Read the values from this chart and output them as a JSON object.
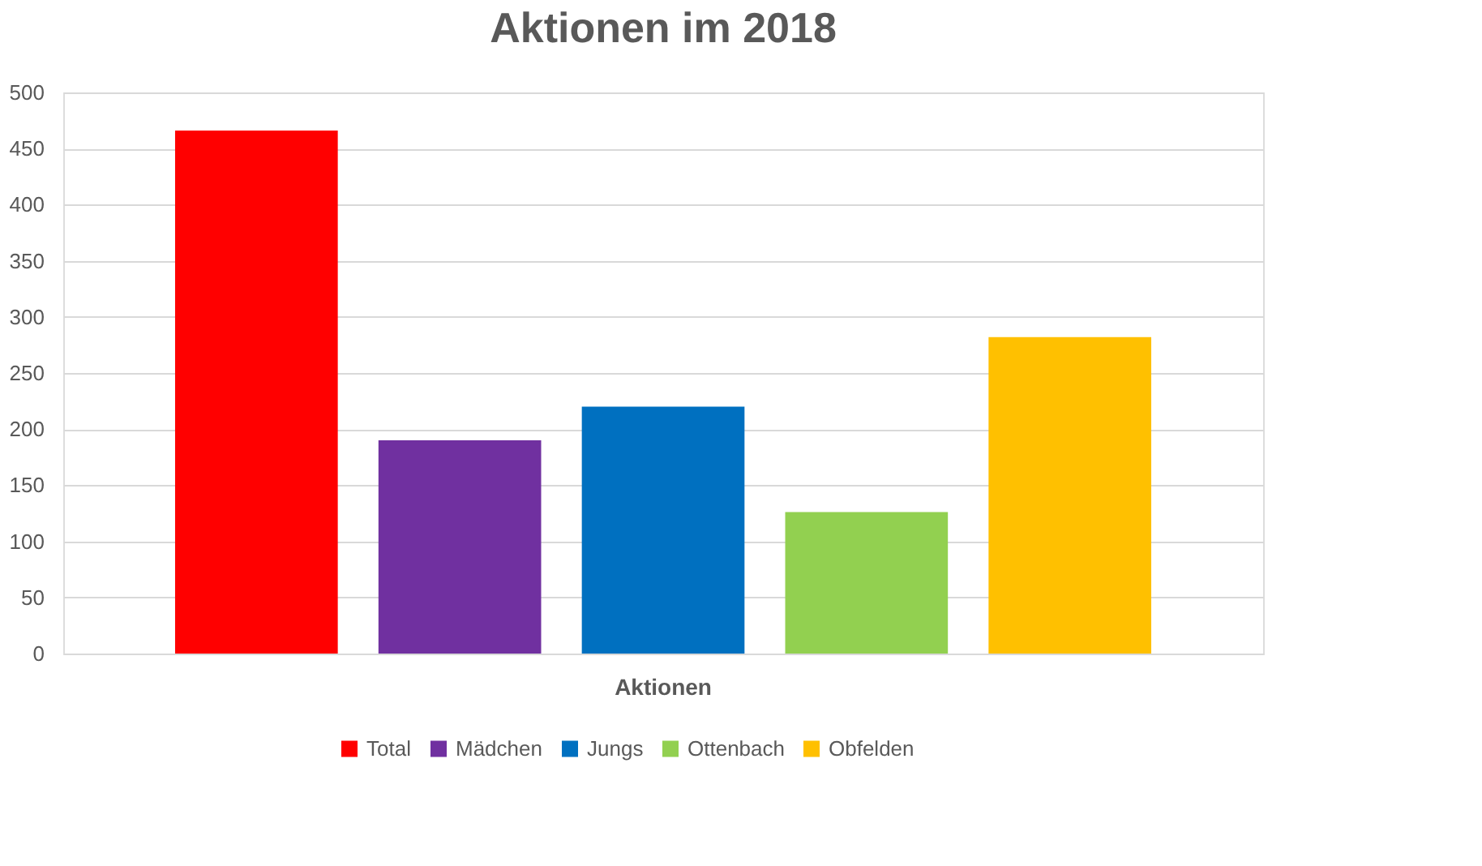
{
  "chart_data": {
    "type": "bar",
    "title": "Aktionen im 2018",
    "categories": [
      "Aktionen"
    ],
    "series": [
      {
        "name": "Total",
        "color": "#ff0000",
        "values": [
          466
        ]
      },
      {
        "name": "Mädchen",
        "color": "#7030a0",
        "values": [
          190
        ]
      },
      {
        "name": "Jungs",
        "color": "#0070c0",
        "values": [
          220
        ]
      },
      {
        "name": "Ottenbach",
        "color": "#92d050",
        "values": [
          126
        ]
      },
      {
        "name": "Obfelden",
        "color": "#ffc000",
        "values": [
          282
        ]
      }
    ],
    "ylim": [
      0,
      500
    ],
    "yticks": [
      0,
      50,
      100,
      150,
      200,
      250,
      300,
      350,
      400,
      450,
      500
    ],
    "grid": "y",
    "legend": "bottom"
  }
}
